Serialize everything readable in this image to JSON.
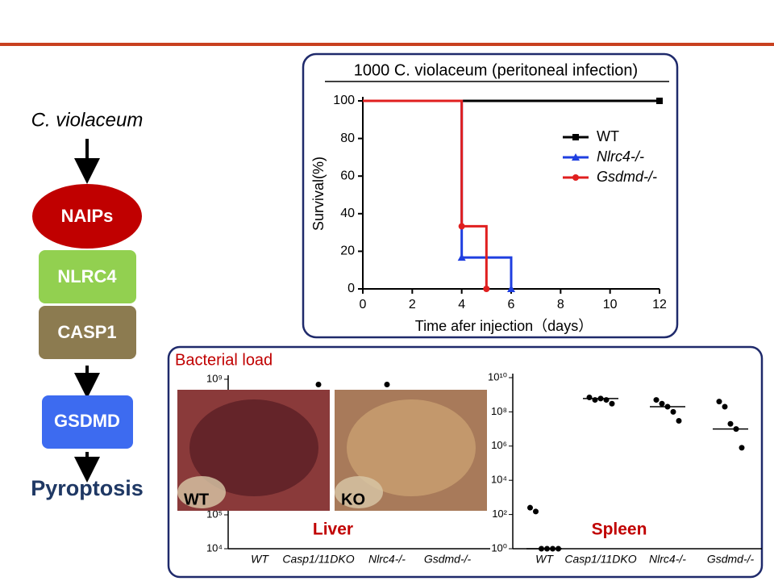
{
  "diagram": {
    "source": "C. violaceum",
    "nodes": [
      "NAIPs",
      "NLRC4",
      "CASP1",
      "GSDMD"
    ],
    "outcome": "Pyroptosis"
  },
  "chart_data": [
    {
      "type": "line",
      "step": true,
      "title": "1000 C. violaceum (peritoneal infection)",
      "xlabel": "Time afer injection（days）",
      "ylabel": "Survival(%)",
      "xlim": [
        0,
        12
      ],
      "xticks": [
        0,
        2,
        4,
        6,
        8,
        10,
        12
      ],
      "ylim": [
        0,
        100
      ],
      "yticks": [
        0,
        20,
        40,
        60,
        80,
        100
      ],
      "series": [
        {
          "name": "WT",
          "color": "#000000",
          "marker": "square",
          "x": [
            0,
            12
          ],
          "values": [
            100,
            100
          ]
        },
        {
          "name": "Nlrc4-/-",
          "color": "#1f3fe0",
          "marker": "triangle",
          "x": [
            0,
            4,
            6
          ],
          "values": [
            100,
            16.7,
            0
          ]
        },
        {
          "name": "Gsdmd-/-",
          "color": "#e01f1f",
          "marker": "circle",
          "x": [
            0,
            4,
            5
          ],
          "values": [
            100,
            33.3,
            0
          ]
        }
      ]
    },
    {
      "type": "scatter",
      "title": "Bacterial load",
      "label": "Liver",
      "log": true,
      "categories": [
        "WT",
        "Casp1/11DKO",
        "Nlrc4-/-",
        "Gsdmd-/-"
      ],
      "ylim": [
        10000,
        1000000000
      ],
      "yticks": [
        {
          "value": 10000,
          "label": "10⁴"
        },
        {
          "value": 100000,
          "label": "10⁵"
        },
        {
          "value": 1000000000,
          "label": "10⁹"
        }
      ],
      "points": [
        [],
        [
          700000000
        ],
        [
          700000000
        ],
        []
      ],
      "medians": [
        null,
        null,
        null,
        null
      ],
      "photos": [
        "WT",
        "KO"
      ]
    },
    {
      "type": "scatter",
      "label": "Spleen",
      "log": true,
      "categories": [
        "WT",
        "Casp1/11DKO",
        "Nlrc4-/-",
        "Gsdmd-/-"
      ],
      "ylim": [
        1,
        10000000000
      ],
      "yticks": [
        {
          "value": 1,
          "label": "10⁰"
        },
        {
          "value": 100,
          "label": "10²"
        },
        {
          "value": 10000,
          "label": "10⁴"
        },
        {
          "value": 1000000,
          "label": "10⁶"
        },
        {
          "value": 100000000,
          "label": "10⁸"
        },
        {
          "value": 10000000000,
          "label": "10¹⁰"
        }
      ],
      "points": [
        [
          250,
          150,
          1,
          1,
          1,
          1
        ],
        [
          700000000,
          500000000,
          600000000,
          500000000,
          300000000
        ],
        [
          500000000,
          300000000,
          200000000,
          100000000,
          30000000
        ],
        [
          400000000,
          200000000,
          20000000,
          10000000,
          800000
        ]
      ],
      "medians": [
        1,
        600000000,
        200000000,
        10000000
      ]
    }
  ]
}
